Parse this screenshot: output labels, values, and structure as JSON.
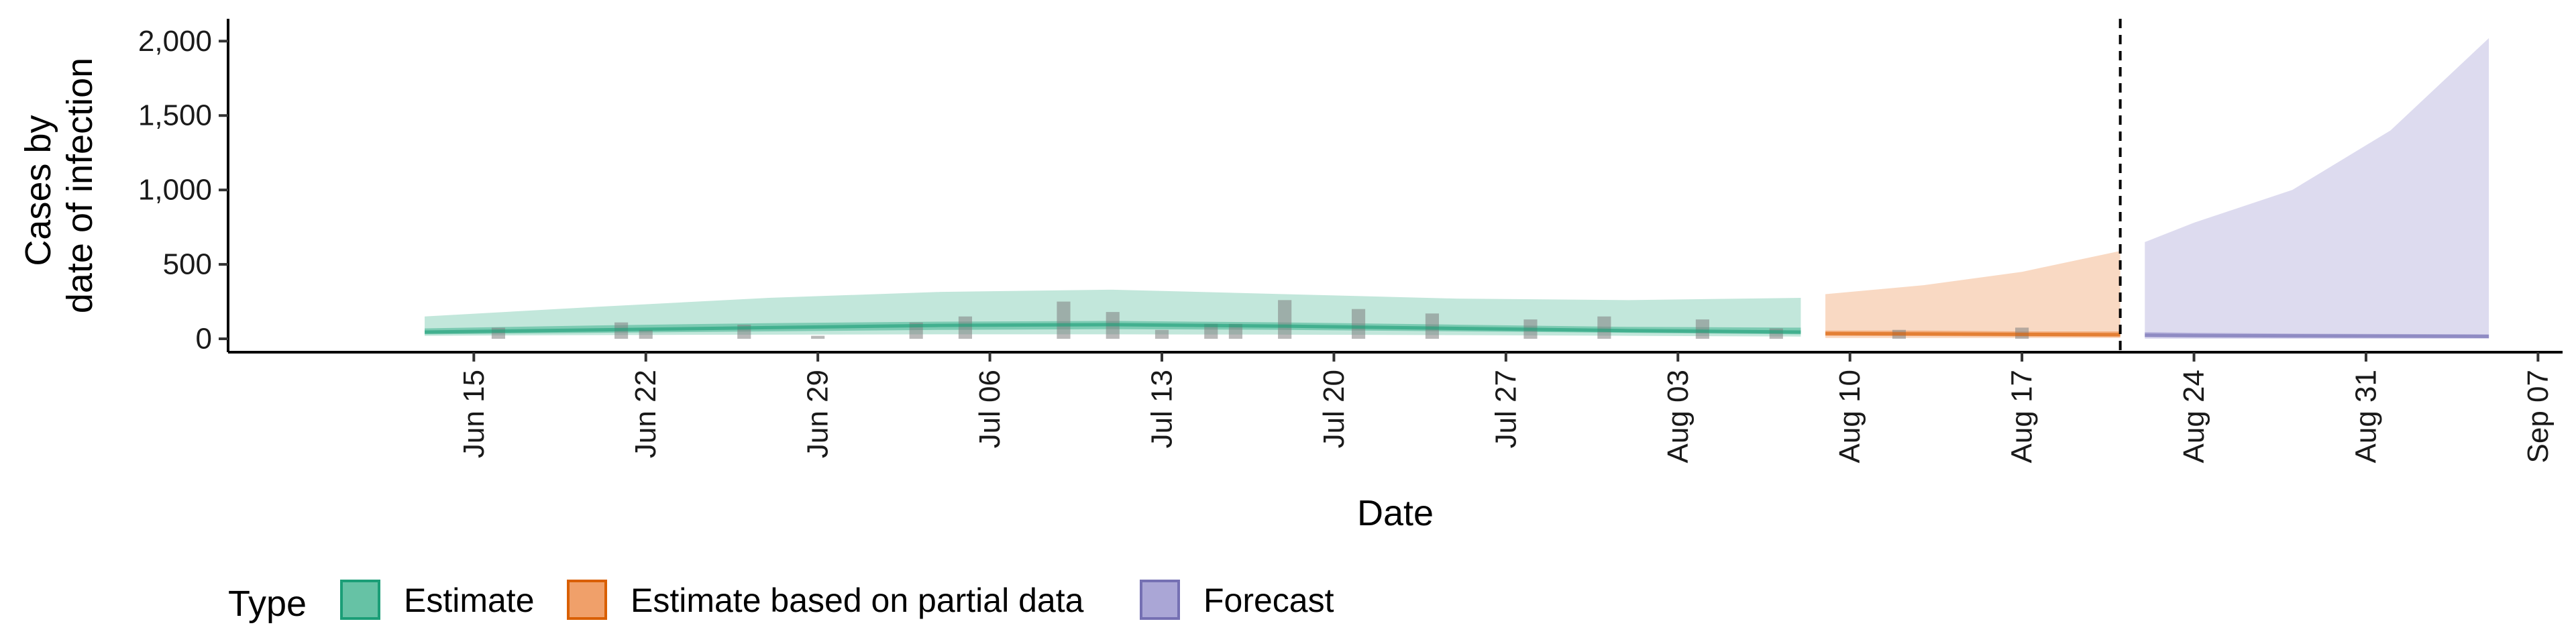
{
  "chart_data": {
    "type": "area",
    "xlabel": "Date",
    "ylabel_lines": [
      "Cases by",
      "date of infection"
    ],
    "x_tick_labels": [
      "Jun 15",
      "Jun 22",
      "Jun 29",
      "Jul 06",
      "Jul 13",
      "Jul 20",
      "Jul 27",
      "Aug 03",
      "Aug 10",
      "Aug 17",
      "Aug 24",
      "Aug 31",
      "Sep 07"
    ],
    "x_tick_dates": [
      "2020-06-15",
      "2020-06-22",
      "2020-06-29",
      "2020-07-06",
      "2020-07-13",
      "2020-07-20",
      "2020-07-27",
      "2020-08-03",
      "2020-08-10",
      "2020-08-17",
      "2020-08-24",
      "2020-08-31",
      "2020-09-07"
    ],
    "x_range": [
      "2020-06-05",
      "2020-09-08"
    ],
    "y_ticks": [
      0,
      500,
      1000,
      1500,
      2000
    ],
    "y_tick_labels": [
      "0",
      "500",
      "1,000",
      "1,500",
      "2,000"
    ],
    "ylim": [
      -90,
      2150
    ],
    "forecast_date": "2020-08-21",
    "grid": false,
    "legend": {
      "title": "Type",
      "position": "bottom",
      "items": [
        {
          "label": "Estimate",
          "fill": "#66c2a5",
          "stroke": "#1b9e77"
        },
        {
          "label": "Estimate based on partial data",
          "fill": "#f0a06a",
          "stroke": "#d95f02"
        },
        {
          "label": "Forecast",
          "fill": "#aaa6d6",
          "stroke": "#7570b3"
        }
      ]
    },
    "series": [
      {
        "name": "Estimate",
        "color": "#1b9e77",
        "x": [
          "2020-06-13",
          "2020-06-20",
          "2020-06-27",
          "2020-07-04",
          "2020-07-11",
          "2020-07-18",
          "2020-07-25",
          "2020-08-01",
          "2020-08-08"
        ],
        "upper90": [
          150,
          215,
          275,
          315,
          330,
          300,
          270,
          260,
          275
        ],
        "lower90": [
          20,
          25,
          28,
          30,
          30,
          28,
          25,
          20,
          15
        ],
        "upper50": [
          70,
          90,
          105,
          115,
          120,
          110,
          95,
          80,
          75
        ],
        "lower50": [
          30,
          40,
          50,
          60,
          65,
          60,
          50,
          40,
          30
        ],
        "median": [
          45,
          60,
          75,
          90,
          95,
          85,
          70,
          55,
          45
        ]
      },
      {
        "name": "Estimate based on partial data",
        "color": "#d95f02",
        "x": [
          "2020-08-09",
          "2020-08-13",
          "2020-08-17",
          "2020-08-21"
        ],
        "upper90": [
          300,
          360,
          450,
          590
        ],
        "lower90": [
          5,
          5,
          5,
          5
        ],
        "upper50": [
          55,
          55,
          50,
          50
        ],
        "lower50": [
          20,
          18,
          15,
          12
        ],
        "median": [
          35,
          33,
          30,
          28
        ]
      },
      {
        "name": "Forecast",
        "color": "#7570b3",
        "x": [
          "2020-08-22",
          "2020-08-24",
          "2020-08-28",
          "2020-09-01",
          "2020-09-05"
        ],
        "upper90": [
          650,
          780,
          1000,
          1400,
          2020
        ],
        "lower90": [
          0,
          0,
          0,
          0,
          0
        ],
        "upper50": [
          45,
          40,
          35,
          32,
          30
        ],
        "lower50": [
          10,
          8,
          6,
          5,
          5
        ],
        "median": [
          25,
          22,
          20,
          18,
          16
        ]
      }
    ],
    "reported_cases": {
      "dates": [
        "2020-06-16",
        "2020-06-21",
        "2020-06-22",
        "2020-06-26",
        "2020-06-29",
        "2020-07-03",
        "2020-07-05",
        "2020-07-09",
        "2020-07-11",
        "2020-07-13",
        "2020-07-15",
        "2020-07-16",
        "2020-07-18",
        "2020-07-21",
        "2020-07-24",
        "2020-07-28",
        "2020-07-31",
        "2020-08-04",
        "2020-08-07",
        "2020-08-12",
        "2020-08-17"
      ],
      "values": [
        75,
        110,
        60,
        95,
        20,
        110,
        150,
        250,
        180,
        60,
        100,
        100,
        260,
        200,
        170,
        130,
        150,
        130,
        70,
        60,
        75
      ]
    }
  }
}
